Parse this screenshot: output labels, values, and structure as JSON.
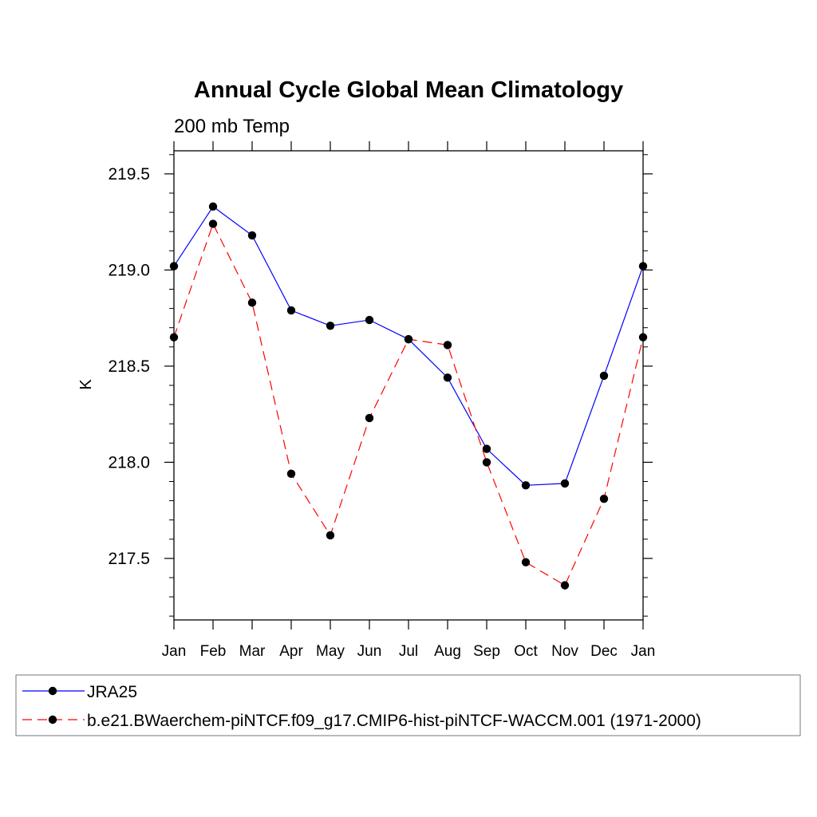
{
  "chart_data": {
    "type": "line",
    "title": "Annual Cycle Global Mean Climatology",
    "subtitle": "200 mb Temp",
    "xlabel": "",
    "ylabel": "K",
    "categories": [
      "Jan",
      "Feb",
      "Mar",
      "Apr",
      "May",
      "Jun",
      "Jul",
      "Aug",
      "Sep",
      "Oct",
      "Nov",
      "Dec",
      "Jan"
    ],
    "ylim": [
      217.18,
      219.62
    ],
    "yticks": [
      "217.5",
      "218.0",
      "218.5",
      "219.0",
      "219.5"
    ],
    "ytick_values": [
      217.5,
      218.0,
      218.5,
      219.0,
      219.5
    ],
    "grid": false,
    "legend_position": "bottom",
    "series": [
      {
        "name": "JRA25",
        "color": "#0000ff",
        "dash": "solid",
        "marker": "filled-circle",
        "values": [
          219.02,
          219.33,
          219.18,
          218.79,
          218.71,
          218.74,
          218.64,
          218.44,
          218.07,
          217.88,
          217.89,
          218.45,
          219.02
        ]
      },
      {
        "name": "b.e21.BWaerchem-piNTCF.f09_g17.CMIP6-hist-piNTCF-WACCM.001 (1971-2000)",
        "color": "#ff0000",
        "dash": "dashed",
        "marker": "filled-circle",
        "values": [
          218.65,
          219.24,
          218.83,
          217.94,
          217.62,
          218.23,
          218.64,
          218.61,
          218.0,
          217.48,
          217.36,
          217.81,
          218.65
        ]
      }
    ]
  }
}
